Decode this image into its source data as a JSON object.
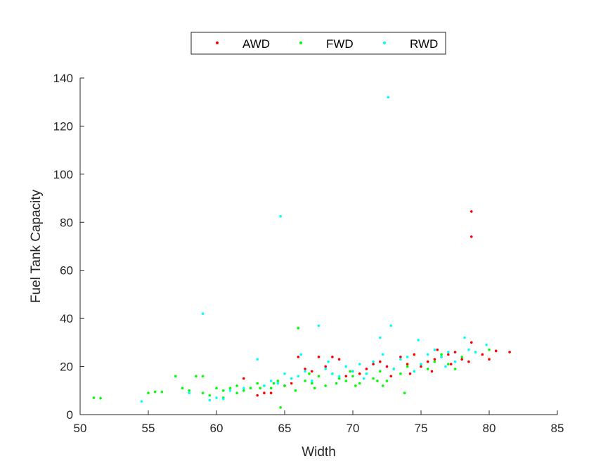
{
  "chart_data": {
    "type": "scatter",
    "xlabel": "Width",
    "ylabel": "Fuel Tank Capacity",
    "xlim": [
      50,
      85
    ],
    "ylim": [
      0,
      140
    ],
    "xticks": [
      "50",
      "55",
      "60",
      "65",
      "70",
      "75",
      "80",
      "85"
    ],
    "yticks": [
      "0",
      "20",
      "40",
      "60",
      "80",
      "100",
      "120",
      "140"
    ],
    "grid": false,
    "legend_position": "top-center",
    "series": [
      {
        "name": "AWD",
        "color": "#ff0000",
        "points": [
          [
            62,
            15
          ],
          [
            63,
            8
          ],
          [
            63.5,
            9
          ],
          [
            64,
            9
          ],
          [
            65,
            12
          ],
          [
            65.5,
            13
          ],
          [
            66,
            24
          ],
          [
            66.5,
            19
          ],
          [
            67,
            18
          ],
          [
            67.5,
            24
          ],
          [
            68,
            20
          ],
          [
            68.5,
            24
          ],
          [
            69,
            23
          ],
          [
            69.5,
            16
          ],
          [
            70,
            18
          ],
          [
            70.5,
            17
          ],
          [
            71,
            19
          ],
          [
            71.5,
            21
          ],
          [
            72,
            22
          ],
          [
            72.5,
            20
          ],
          [
            73,
            19
          ],
          [
            73.5,
            24
          ],
          [
            74,
            21
          ],
          [
            74.5,
            25
          ],
          [
            75,
            20
          ],
          [
            75.5,
            22
          ],
          [
            76,
            23
          ],
          [
            76.5,
            24
          ],
          [
            77,
            25
          ],
          [
            77.5,
            26
          ],
          [
            78,
            23
          ],
          [
            78.5,
            22
          ],
          [
            78.7,
            84.5
          ],
          [
            78.7,
            74
          ],
          [
            78.7,
            30
          ],
          [
            80.5,
            26.5
          ],
          [
            81.5,
            26
          ],
          [
            80,
            23
          ],
          [
            79.5,
            25
          ],
          [
            76.2,
            27
          ],
          [
            77.2,
            21
          ],
          [
            75.8,
            18
          ],
          [
            74.2,
            17
          ],
          [
            72.8,
            16
          ]
        ]
      },
      {
        "name": "FWD",
        "color": "#00ff00",
        "points": [
          [
            51,
            7
          ],
          [
            51.5,
            6.8
          ],
          [
            55,
            9
          ],
          [
            55.5,
            9.5
          ],
          [
            56,
            9.5
          ],
          [
            57,
            16
          ],
          [
            57.5,
            11
          ],
          [
            58,
            10
          ],
          [
            58.5,
            16
          ],
          [
            59,
            16
          ],
          [
            59,
            9
          ],
          [
            59.5,
            8
          ],
          [
            60,
            11
          ],
          [
            60.5,
            10
          ],
          [
            61,
            11
          ],
          [
            61.5,
            12
          ],
          [
            62,
            10
          ],
          [
            62.5,
            11
          ],
          [
            63,
            13
          ],
          [
            63.5,
            12
          ],
          [
            64,
            11
          ],
          [
            64.5,
            14
          ],
          [
            64.7,
            3
          ],
          [
            65,
            12
          ],
          [
            65.5,
            15
          ],
          [
            66,
            36
          ],
          [
            66.5,
            14
          ],
          [
            67,
            13
          ],
          [
            67.5,
            16
          ],
          [
            68,
            12
          ],
          [
            68.5,
            17
          ],
          [
            69,
            15
          ],
          [
            69.5,
            14
          ],
          [
            70,
            16
          ],
          [
            70.5,
            13
          ],
          [
            71,
            17
          ],
          [
            71.5,
            15
          ],
          [
            72,
            18
          ],
          [
            72.5,
            14
          ],
          [
            73,
            19
          ],
          [
            73.5,
            17
          ],
          [
            74,
            20
          ],
          [
            74.5,
            18
          ],
          [
            75,
            21
          ],
          [
            75.5,
            19
          ],
          [
            76,
            22
          ],
          [
            76.5,
            25
          ],
          [
            77,
            21
          ],
          [
            77.5,
            19
          ],
          [
            78,
            24
          ],
          [
            79,
            26
          ],
          [
            80,
            27
          ],
          [
            60.5,
            7
          ],
          [
            61.5,
            9
          ],
          [
            63.2,
            11
          ],
          [
            65.8,
            10
          ],
          [
            67.2,
            11
          ],
          [
            68.8,
            13
          ],
          [
            70.2,
            12
          ],
          [
            71.8,
            14
          ],
          [
            73.8,
            9
          ],
          [
            72.2,
            12
          ],
          [
            69.8,
            18
          ],
          [
            66.8,
            17
          ],
          [
            64.2,
            13
          ]
        ]
      },
      {
        "name": "RWD",
        "color": "#00ffff",
        "points": [
          [
            54.5,
            5.5
          ],
          [
            58,
            9
          ],
          [
            59,
            42
          ],
          [
            59.5,
            6
          ],
          [
            60,
            7
          ],
          [
            60.5,
            6.5
          ],
          [
            61,
            10
          ],
          [
            62,
            11
          ],
          [
            63,
            23
          ],
          [
            63.5,
            12
          ],
          [
            64,
            14
          ],
          [
            64.5,
            13
          ],
          [
            64.7,
            82.5
          ],
          [
            65,
            17
          ],
          [
            65.5,
            15
          ],
          [
            66,
            16
          ],
          [
            66.5,
            18
          ],
          [
            67,
            14
          ],
          [
            67.5,
            37
          ],
          [
            68,
            19
          ],
          [
            68.5,
            17
          ],
          [
            69,
            16
          ],
          [
            69.5,
            20
          ],
          [
            70,
            18
          ],
          [
            70.5,
            21
          ],
          [
            71,
            17
          ],
          [
            71.5,
            22
          ],
          [
            72,
            32
          ],
          [
            72.6,
            132
          ],
          [
            72.8,
            37
          ],
          [
            73,
            19
          ],
          [
            73.5,
            23
          ],
          [
            74,
            24
          ],
          [
            74.5,
            18
          ],
          [
            75,
            21
          ],
          [
            75.5,
            25
          ],
          [
            76,
            27
          ],
          [
            76.5,
            24
          ],
          [
            77,
            26
          ],
          [
            77.5,
            22
          ],
          [
            78.2,
            32
          ],
          [
            78.5,
            27
          ],
          [
            79,
            26
          ],
          [
            79.8,
            29
          ],
          [
            66.2,
            25
          ],
          [
            68.2,
            22
          ],
          [
            70.8,
            15
          ],
          [
            72.2,
            25
          ],
          [
            74.8,
            31
          ],
          [
            76.8,
            20
          ]
        ]
      }
    ]
  }
}
